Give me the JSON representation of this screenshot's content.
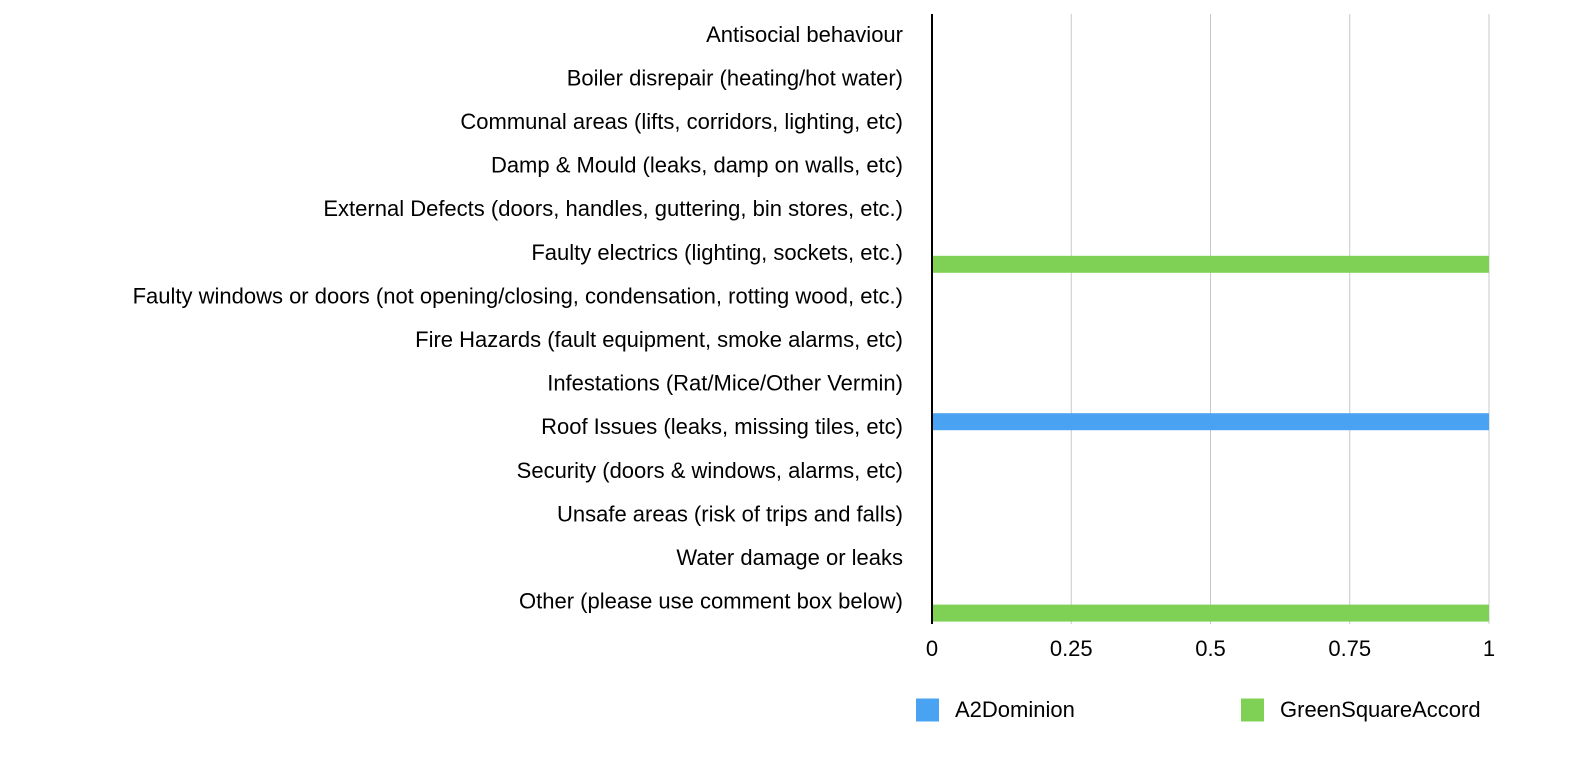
{
  "chart_data": {
    "type": "bar",
    "orientation": "horizontal",
    "categories": [
      "Antisocial behaviour",
      "Boiler disrepair (heating/hot water)",
      "Communal areas (lifts, corridors, lighting, etc)",
      "Damp & Mould (leaks, damp on walls, etc)",
      "External Defects (doors, handles, guttering, bin stores, etc.)",
      "Faulty electrics (lighting, sockets, etc.)",
      "Faulty windows or doors (not opening/closing, condensation, rotting wood, etc.)",
      "Fire Hazards (fault equipment, smoke alarms, etc)",
      "Infestations (Rat/Mice/Other Vermin)",
      "Roof Issues (leaks, missing tiles, etc)",
      "Security (doors & windows, alarms, etc)",
      "Unsafe areas (risk of trips and falls)",
      "Water damage or leaks",
      "Other (please use comment box below)"
    ],
    "series": [
      {
        "name": "A2Dominion",
        "color": "#4aa3f2",
        "values": [
          0,
          0,
          0,
          0,
          0,
          0,
          0,
          0,
          0,
          1,
          0,
          0,
          0,
          0
        ]
      },
      {
        "name": "GreenSquareAccord",
        "color": "#7fd155",
        "values": [
          0,
          0,
          0,
          0,
          0,
          1,
          0,
          0,
          0,
          0,
          0,
          0,
          0,
          1
        ]
      }
    ],
    "xlim": [
      0,
      1
    ],
    "xticks": [
      0,
      0.25,
      0.5,
      0.75,
      1
    ],
    "xtick_labels": [
      "0",
      "0.25",
      "0.5",
      "0.75",
      "1"
    ],
    "title": "",
    "xlabel": "",
    "ylabel": "",
    "grid": "vertical",
    "legend_position": "bottom"
  }
}
